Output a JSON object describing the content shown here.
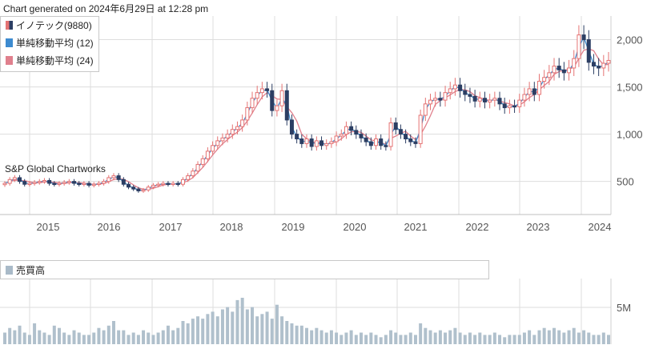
{
  "header": {
    "generated": "Chart generated on 2024年6月29日 at 12:28 pm"
  },
  "legend": [
    {
      "label": "イノテック(9880)",
      "icon": "candlestick-icon"
    },
    {
      "label": "単純移動平均 (12)",
      "icon": "line-icon",
      "color": "#3d8bd0"
    },
    {
      "label": "単純移動平均 (24)",
      "icon": "line-icon",
      "color": "#e0808d"
    }
  ],
  "watermark": "S&P Global Chartworks",
  "volume_legend": {
    "label": "売買高",
    "icon": "bar-icon"
  },
  "colors": {
    "up": "#e57373",
    "down": "#2c3e63",
    "sma12": "#3d8bd0",
    "sma24": "#e0808d",
    "volume": "#b0c0cc",
    "grid": "#dddddd"
  },
  "chart_data": [
    {
      "type": "candlestick",
      "series": [
        {
          "name": "イノテック(9880)",
          "kind": "ohlc"
        },
        {
          "name": "単純移動平均 (12)",
          "kind": "line"
        },
        {
          "name": "単純移動平均 (24)",
          "kind": "line"
        }
      ],
      "x_ticks": [
        "2015",
        "2016",
        "2017",
        "2018",
        "2019",
        "2020",
        "2021",
        "2022",
        "2023",
        "2024"
      ],
      "y_ticks": [
        "500",
        "1,000",
        "1,500",
        "2,000"
      ],
      "y_tick_values": [
        500,
        1000,
        1500,
        2000
      ],
      "xlim": [
        "2014-05",
        "2024-07"
      ],
      "ylim": [
        150,
        2250
      ],
      "grid": true,
      "close_monthly_approx": [
        480,
        520,
        540,
        500,
        470,
        480,
        490,
        500,
        510,
        480,
        470,
        480,
        490,
        500,
        480,
        470,
        480,
        460,
        470,
        480,
        500,
        540,
        560,
        520,
        470,
        440,
        420,
        400,
        410,
        440,
        460,
        470,
        480,
        470,
        480,
        470,
        520,
        560,
        610,
        680,
        740,
        820,
        880,
        930,
        960,
        1000,
        1050,
        1080,
        1150,
        1280,
        1380,
        1440,
        1480,
        1460,
        1250,
        1300,
        1460,
        1150,
        1000,
        950,
        900,
        950,
        870,
        930,
        880,
        900,
        920,
        980,
        1000,
        1080,
        1040,
        1000,
        960,
        920,
        880,
        950,
        880,
        870,
        1120,
        1050,
        1000,
        950,
        920,
        900,
        1200,
        1320,
        1360,
        1380,
        1360,
        1440,
        1480,
        1520,
        1460,
        1420,
        1400,
        1350,
        1380,
        1340,
        1360,
        1380,
        1320,
        1280,
        1300,
        1290,
        1360,
        1420,
        1480,
        1420,
        1560,
        1600,
        1650,
        1720,
        1680,
        1650,
        1700,
        1800,
        2050,
        2000,
        1760,
        1720,
        1700,
        1750,
        1780
      ]
    },
    {
      "type": "bar",
      "title": "売買高",
      "y_ticks": [
        "5M"
      ],
      "y_tick_values": [
        5000000
      ],
      "xlim": [
        "2014-05",
        "2024-07"
      ],
      "values_relative": [
        0.25,
        0.35,
        0.3,
        0.4,
        0.25,
        0.2,
        0.45,
        0.3,
        0.25,
        0.2,
        0.4,
        0.35,
        0.25,
        0.2,
        0.3,
        0.25,
        0.2,
        0.2,
        0.25,
        0.35,
        0.3,
        0.4,
        0.5,
        0.3,
        0.3,
        0.2,
        0.25,
        0.2,
        0.3,
        0.25,
        0.2,
        0.25,
        0.3,
        0.4,
        0.3,
        0.35,
        0.5,
        0.45,
        0.55,
        0.6,
        0.55,
        0.65,
        0.7,
        0.6,
        0.75,
        0.8,
        0.7,
        0.95,
        1.0,
        0.75,
        0.8,
        0.6,
        0.65,
        0.7,
        0.55,
        0.85,
        0.6,
        0.5,
        0.45,
        0.4,
        0.4,
        0.35,
        0.3,
        0.35,
        0.3,
        0.25,
        0.3,
        0.25,
        0.2,
        0.25,
        0.3,
        0.2,
        0.25,
        0.2,
        0.25,
        0.2,
        0.15,
        0.2,
        0.3,
        0.25,
        0.2,
        0.2,
        0.25,
        0.2,
        0.45,
        0.35,
        0.3,
        0.25,
        0.3,
        0.25,
        0.3,
        0.35,
        0.25,
        0.2,
        0.25,
        0.2,
        0.25,
        0.2,
        0.2,
        0.25,
        0.2,
        0.15,
        0.2,
        0.2,
        0.2,
        0.25,
        0.3,
        0.2,
        0.3,
        0.35,
        0.3,
        0.35,
        0.3,
        0.25,
        0.3,
        0.35,
        0.25,
        0.3,
        0.25,
        0.2,
        0.2,
        0.25,
        0.2
      ]
    }
  ]
}
